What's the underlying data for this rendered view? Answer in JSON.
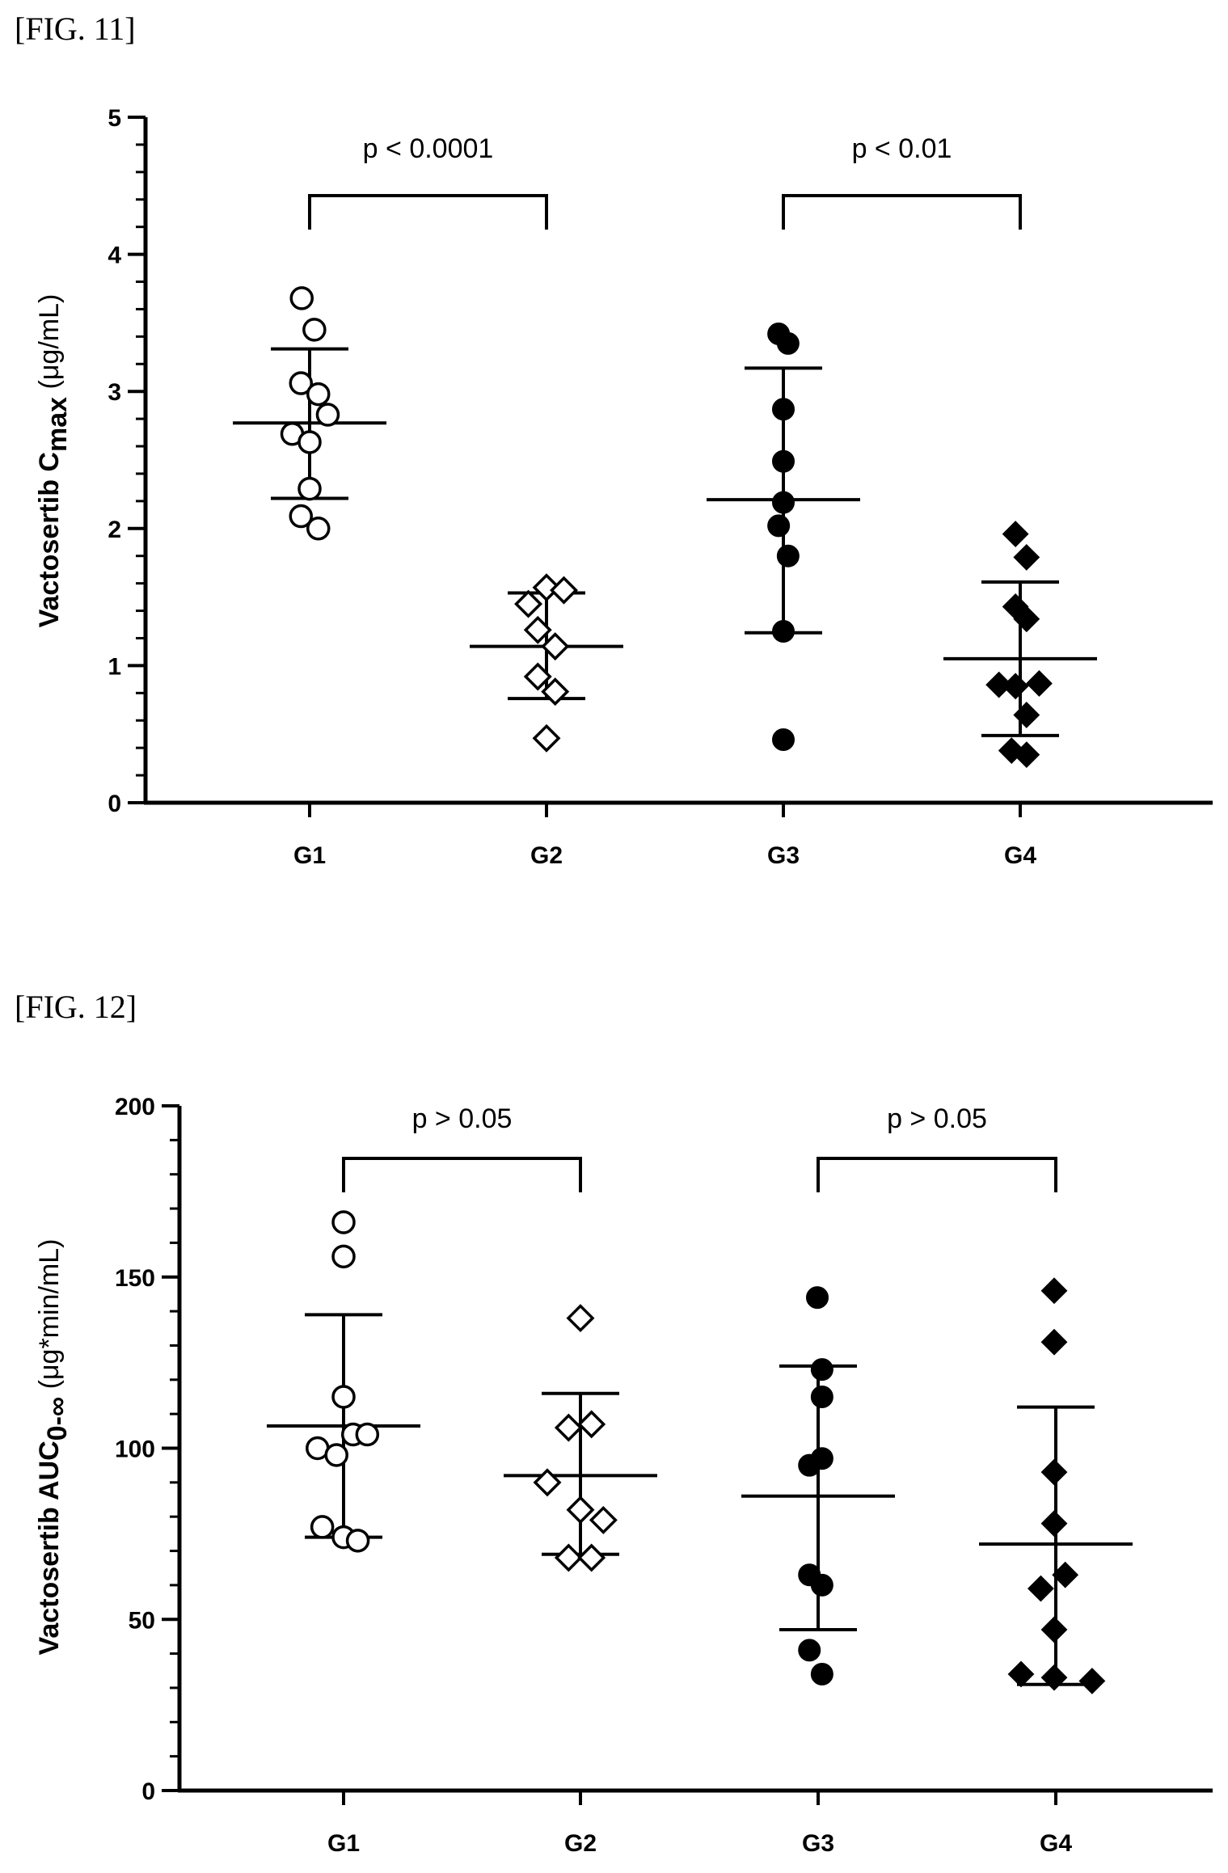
{
  "figures": [
    {
      "label": "[FIG. 11]"
    },
    {
      "label": "[FIG. 12]"
    }
  ],
  "chart_data": [
    {
      "type": "scatter",
      "figure": "[FIG. 11]",
      "ylabel": {
        "main": "Vactosertib C",
        "sub": "max",
        "unit": "(μg/mL)"
      },
      "categories": [
        "G1",
        "G2",
        "G3",
        "G4"
      ],
      "ylim": [
        0,
        5
      ],
      "yticks": [
        0,
        1,
        2,
        3,
        4,
        5
      ],
      "markers": {
        "G1": "open-circle",
        "G2": "open-diamond",
        "G3": "filled-circle",
        "G4": "filled-diamond"
      },
      "series": [
        {
          "category": "G1",
          "points": [
            {
              "x": 1.9,
              "y": 3.68
            },
            {
              "x": 2.06,
              "y": 3.45
            },
            {
              "x": 1.89,
              "y": 3.06
            },
            {
              "x": 2.11,
              "y": 2.98
            },
            {
              "x": 2.23,
              "y": 2.83
            },
            {
              "x": 1.78,
              "y": 2.69
            },
            {
              "x": 2.0,
              "y": 2.63
            },
            {
              "x": 2.0,
              "y": 2.29
            },
            {
              "x": 1.89,
              "y": 2.09
            },
            {
              "x": 2.11,
              "y": 2.0
            }
          ],
          "mean": 2.77,
          "sd_low": 2.22,
          "sd_high": 3.31
        },
        {
          "category": "G2",
          "points": [
            {
              "x": 4.77,
              "y": 1.45
            },
            {
              "x": 5.0,
              "y": 1.57
            },
            {
              "x": 5.22,
              "y": 1.55
            },
            {
              "x": 4.89,
              "y": 1.26
            },
            {
              "x": 5.11,
              "y": 1.14
            },
            {
              "x": 4.89,
              "y": 0.92
            },
            {
              "x": 5.11,
              "y": 0.81
            },
            {
              "x": 5.0,
              "y": 0.47
            }
          ],
          "mean": 1.14,
          "sd_low": 0.76,
          "sd_high": 1.53
        },
        {
          "category": "G3",
          "points": [
            {
              "x": 7.94,
              "y": 3.42
            },
            {
              "x": 8.06,
              "y": 3.35
            },
            {
              "x": 8.0,
              "y": 2.87
            },
            {
              "x": 8.0,
              "y": 2.49
            },
            {
              "x": 8.0,
              "y": 2.19
            },
            {
              "x": 7.94,
              "y": 2.02
            },
            {
              "x": 8.06,
              "y": 1.8
            },
            {
              "x": 8.0,
              "y": 1.25
            },
            {
              "x": 8.0,
              "y": 0.46
            }
          ],
          "mean": 2.21,
          "sd_low": 1.24,
          "sd_high": 3.17
        },
        {
          "category": "G4",
          "points": [
            {
              "x": 10.94,
              "y": 1.96
            },
            {
              "x": 11.08,
              "y": 1.79
            },
            {
              "x": 10.94,
              "y": 1.43
            },
            {
              "x": 11.08,
              "y": 1.34
            },
            {
              "x": 10.73,
              "y": 0.86
            },
            {
              "x": 10.94,
              "y": 0.85
            },
            {
              "x": 11.24,
              "y": 0.87
            },
            {
              "x": 11.08,
              "y": 0.64
            },
            {
              "x": 10.89,
              "y": 0.38
            },
            {
              "x": 11.08,
              "y": 0.35
            }
          ],
          "mean": 1.05,
          "sd_low": 0.49,
          "sd_high": 1.61
        }
      ],
      "comparisons": [
        {
          "from": "G1",
          "to": "G2",
          "label": "p < 0.0001"
        },
        {
          "from": "G3",
          "to": "G4",
          "label": "p < 0.01"
        }
      ]
    },
    {
      "type": "scatter",
      "figure": "[FIG. 12]",
      "ylabel": {
        "main": "Vactosertib AUC",
        "sub": "0-∞",
        "unit": "(μg*min/mL)"
      },
      "categories": [
        "G1",
        "G2",
        "G3",
        "G4"
      ],
      "ylim": [
        0,
        200
      ],
      "yticks": [
        0,
        50,
        100,
        150,
        200
      ],
      "markers": {
        "G1": "open-circle",
        "G2": "open-diamond",
        "G3": "filled-circle",
        "G4": "filled-diamond"
      },
      "series": [
        {
          "category": "G1",
          "points": [
            {
              "x": 2.0,
              "y": 166
            },
            {
              "x": 2.0,
              "y": 156
            },
            {
              "x": 2.0,
              "y": 115
            },
            {
              "x": 2.12,
              "y": 104
            },
            {
              "x": 2.3,
              "y": 104
            },
            {
              "x": 1.67,
              "y": 100
            },
            {
              "x": 1.91,
              "y": 98
            },
            {
              "x": 1.73,
              "y": 77
            },
            {
              "x": 2.0,
              "y": 74
            },
            {
              "x": 2.18,
              "y": 73
            }
          ],
          "mean": 106.5,
          "sd_low": 74,
          "sd_high": 139
        },
        {
          "category": "G2",
          "points": [
            {
              "x": 5.0,
              "y": 138
            },
            {
              "x": 4.85,
              "y": 106
            },
            {
              "x": 5.14,
              "y": 107
            },
            {
              "x": 4.58,
              "y": 90
            },
            {
              "x": 5.0,
              "y": 82
            },
            {
              "x": 5.29,
              "y": 79
            },
            {
              "x": 4.85,
              "y": 68
            },
            {
              "x": 5.14,
              "y": 68
            }
          ],
          "mean": 92,
          "sd_low": 69,
          "sd_high": 116
        },
        {
          "category": "G3",
          "points": [
            {
              "x": 8.0,
              "y": 144
            },
            {
              "x": 8.06,
              "y": 123
            },
            {
              "x": 8.06,
              "y": 115
            },
            {
              "x": 7.9,
              "y": 95
            },
            {
              "x": 8.06,
              "y": 97
            },
            {
              "x": 7.9,
              "y": 63
            },
            {
              "x": 8.06,
              "y": 60
            },
            {
              "x": 7.9,
              "y": 41
            },
            {
              "x": 8.06,
              "y": 34
            }
          ],
          "mean": 86,
          "sd_low": 47,
          "sd_high": 124
        },
        {
          "category": "G4",
          "points": [
            {
              "x": 11.0,
              "y": 146
            },
            {
              "x": 11.0,
              "y": 131
            },
            {
              "x": 11.0,
              "y": 93
            },
            {
              "x": 11.0,
              "y": 78
            },
            {
              "x": 11.14,
              "y": 63
            },
            {
              "x": 10.83,
              "y": 59
            },
            {
              "x": 11.0,
              "y": 47
            },
            {
              "x": 10.58,
              "y": 34
            },
            {
              "x": 11.0,
              "y": 33
            },
            {
              "x": 11.48,
              "y": 32
            }
          ],
          "mean": 72,
          "sd_low": 31,
          "sd_high": 112
        }
      ],
      "comparisons": [
        {
          "from": "G1",
          "to": "G2",
          "label": "p > 0.05"
        },
        {
          "from": "G3",
          "to": "G4",
          "label": "p > 0.05"
        }
      ]
    }
  ]
}
